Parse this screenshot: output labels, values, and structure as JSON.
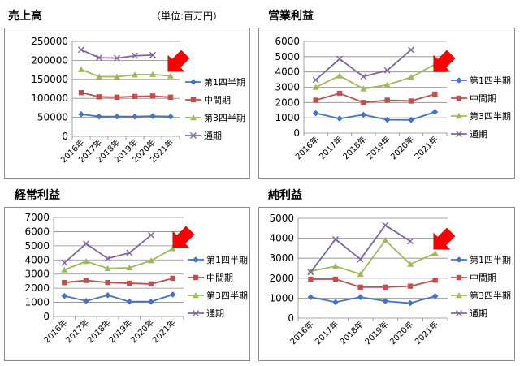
{
  "unit_label": "（単位:百万円）",
  "series_colors": [
    "#4472C4",
    "#C0504D",
    "#9BBB59",
    "#8064A2"
  ],
  "series_markers": [
    "diamond",
    "square",
    "triangle",
    "x"
  ],
  "arrow_color": "#FF0000",
  "chart_data": [
    {
      "type": "line",
      "title": "売上高",
      "categories": [
        "2016年",
        "2017年",
        "2018年",
        "2019年",
        "2020年",
        "2021年"
      ],
      "ylim": [
        0,
        250000
      ],
      "yticks": [
        "0",
        "50000",
        "100000",
        "150000",
        "200000",
        "250000"
      ],
      "grid": true,
      "legend": "right",
      "series": [
        {
          "name": "第1四半期",
          "values": [
            58000,
            52000,
            52000,
            52000,
            53000,
            52000
          ]
        },
        {
          "name": "中間期",
          "values": [
            115000,
            104000,
            103000,
            105000,
            106000,
            103000
          ]
        },
        {
          "name": "第3四半期",
          "values": [
            176000,
            157000,
            157000,
            162000,
            163000,
            159000
          ]
        },
        {
          "name": "通期",
          "values": [
            228000,
            207000,
            206000,
            212000,
            214000,
            null
          ]
        }
      ]
    },
    {
      "type": "line",
      "title": "営業利益",
      "categories": [
        "2016年",
        "2017年",
        "2018年",
        "2019年",
        "2020年",
        "2021年"
      ],
      "ylim": [
        0,
        6000
      ],
      "yticks": [
        "0",
        "1000",
        "2000",
        "3000",
        "4000",
        "5000",
        "6000"
      ],
      "grid": true,
      "legend": "right",
      "series": [
        {
          "name": "第1四半期",
          "values": [
            1300,
            950,
            1200,
            870,
            860,
            1380
          ]
        },
        {
          "name": "中間期",
          "values": [
            2150,
            2600,
            2000,
            2150,
            2100,
            2550
          ]
        },
        {
          "name": "第3四半期",
          "values": [
            3000,
            3750,
            2900,
            3150,
            3650,
            4500
          ]
        },
        {
          "name": "通期",
          "values": [
            3480,
            4850,
            3700,
            4100,
            5450,
            null
          ]
        }
      ]
    },
    {
      "type": "line",
      "title": "経常利益",
      "categories": [
        "2016年",
        "2017年",
        "2018年",
        "2019年",
        "2020年",
        "2021年"
      ],
      "ylim": [
        0,
        7000
      ],
      "yticks": [
        "0",
        "1000",
        "2000",
        "3000",
        "4000",
        "5000",
        "6000",
        "7000"
      ],
      "grid": true,
      "legend": "right",
      "series": [
        {
          "name": "第1四半期",
          "values": [
            1450,
            1100,
            1500,
            1050,
            1050,
            1550
          ]
        },
        {
          "name": "中間期",
          "values": [
            2400,
            2550,
            2400,
            2350,
            2300,
            2700
          ]
        },
        {
          "name": "第3四半期",
          "values": [
            3300,
            3900,
            3400,
            3450,
            3950,
            4800
          ]
        },
        {
          "name": "通期",
          "values": [
            3800,
            5150,
            4100,
            4500,
            5750,
            null
          ]
        }
      ]
    },
    {
      "type": "line",
      "title": "純利益",
      "categories": [
        "2016年",
        "2017年",
        "2018年",
        "2019年",
        "2020年",
        "2021年"
      ],
      "ylim": [
        0,
        5000
      ],
      "yticks": [
        "0",
        "1000",
        "2000",
        "3000",
        "4000",
        "5000"
      ],
      "grid": true,
      "legend": "right",
      "series": [
        {
          "name": "第1四半期",
          "values": [
            1050,
            800,
            1050,
            850,
            750,
            1100
          ]
        },
        {
          "name": "中間期",
          "values": [
            1950,
            1950,
            1550,
            1550,
            1600,
            1900
          ]
        },
        {
          "name": "第3四半期",
          "values": [
            2350,
            2600,
            2200,
            3900,
            2700,
            3250
          ]
        },
        {
          "name": "通期",
          "values": [
            2300,
            3950,
            2950,
            4650,
            3850,
            null
          ]
        }
      ]
    }
  ]
}
